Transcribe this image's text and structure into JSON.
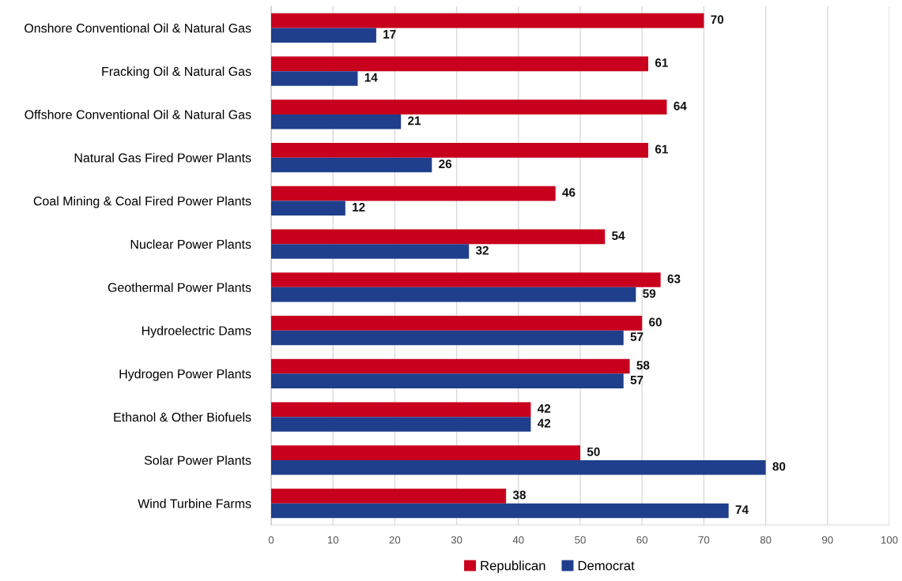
{
  "chart_data": {
    "type": "bar",
    "orientation": "horizontal",
    "categories": [
      "Onshore Conventional Oil & Natural Gas",
      "Fracking Oil & Natural Gas",
      "Offshore Conventional Oil & Natural Gas",
      "Natural Gas Fired Power Plants",
      "Coal Mining & Coal Fired Power Plants",
      "Nuclear Power Plants",
      "Geothermal Power Plants",
      "Hydroelectric Dams",
      "Hydrogen Power Plants",
      "Ethanol & Other Biofuels",
      "Solar Power Plants",
      "Wind Turbine Farms"
    ],
    "series": [
      {
        "name": "Republican",
        "color": "#c8001e",
        "values": [
          70,
          61,
          64,
          61,
          46,
          54,
          63,
          60,
          58,
          42,
          50,
          38
        ]
      },
      {
        "name": "Democrat",
        "color": "#1f3f8c",
        "values": [
          17,
          14,
          21,
          26,
          12,
          32,
          59,
          57,
          57,
          42,
          80,
          74
        ]
      }
    ],
    "xlim": [
      0,
      100
    ],
    "xticks": [
      0,
      10,
      20,
      30,
      40,
      50,
      60,
      70,
      80,
      90,
      100
    ],
    "grid": "x",
    "legend": "bottom",
    "data_labels": true
  }
}
